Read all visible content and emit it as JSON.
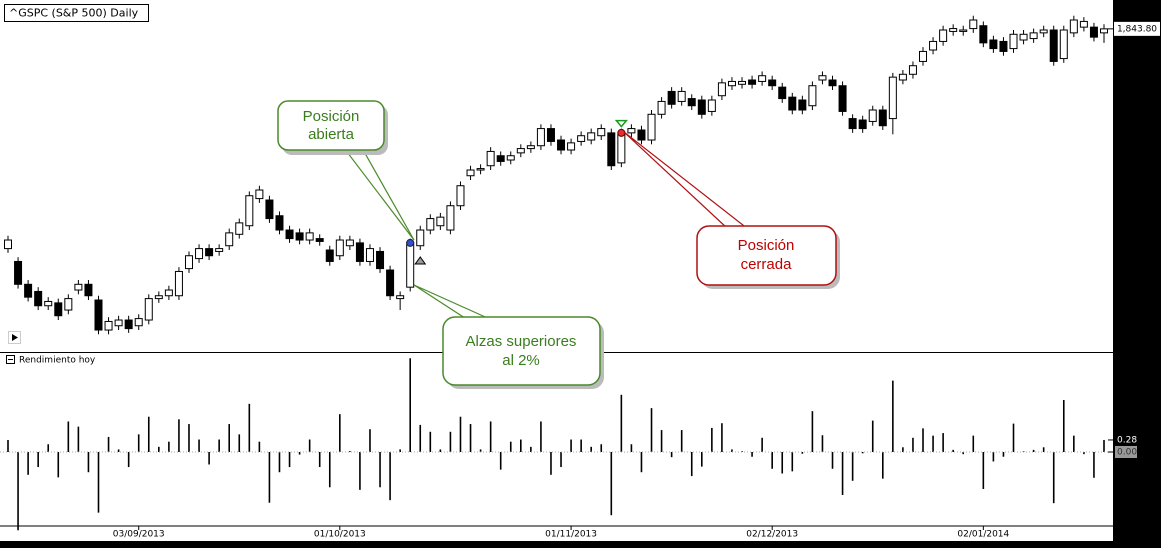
{
  "chart_data": [
    {
      "type": "candlestick",
      "title": "^GSPC (S&P 500) Daily",
      "open": [
        1690,
        1681,
        1665,
        1660,
        1650,
        1652,
        1647,
        1661,
        1665,
        1654,
        1633,
        1636,
        1640,
        1636,
        1640,
        1655,
        1657,
        1657,
        1676,
        1683,
        1690,
        1688,
        1692,
        1700,
        1706,
        1725,
        1724,
        1713,
        1703,
        1701,
        1696,
        1697,
        1689,
        1685,
        1692,
        1694,
        1681,
        1688,
        1675,
        1655,
        1663,
        1692,
        1703,
        1706,
        1703,
        1720,
        1741,
        1745,
        1748,
        1755,
        1752,
        1757,
        1760,
        1762,
        1774,
        1766,
        1759,
        1765,
        1766,
        1769,
        1771,
        1750,
        1771,
        1773,
        1766,
        1784,
        1800,
        1793,
        1795,
        1794,
        1786,
        1797,
        1804,
        1805,
        1808,
        1807,
        1808,
        1803,
        1796,
        1794,
        1790,
        1808,
        1808,
        1804,
        1781,
        1780,
        1779,
        1787,
        1781,
        1808,
        1812,
        1821,
        1829,
        1835,
        1842,
        1842,
        1844,
        1846,
        1836,
        1835,
        1830,
        1836,
        1837,
        1841,
        1843,
        1823,
        1841,
        1845,
        1845,
        1841
      ],
      "high": [
        1699,
        1684,
        1668,
        1663,
        1656,
        1655,
        1658,
        1668,
        1668,
        1657,
        1642,
        1643,
        1643,
        1644,
        1658,
        1660,
        1664,
        1677,
        1688,
        1693,
        1693,
        1693,
        1704,
        1711,
        1730,
        1734,
        1727,
        1716,
        1706,
        1704,
        1704,
        1700,
        1692,
        1699,
        1699,
        1697,
        1693,
        1691,
        1678,
        1660,
        1697,
        1706,
        1714,
        1715,
        1723,
        1737,
        1748,
        1749,
        1761,
        1758,
        1758,
        1763,
        1765,
        1777,
        1777,
        1769,
        1767,
        1772,
        1774,
        1777,
        1774,
        1774,
        1777,
        1776,
        1787,
        1796,
        1803,
        1803,
        1798,
        1797,
        1797,
        1809,
        1810,
        1810,
        1811,
        1814,
        1811,
        1806,
        1799,
        1797,
        1807,
        1814,
        1811,
        1807,
        1784,
        1783,
        1790,
        1790,
        1813,
        1815,
        1821,
        1831,
        1838,
        1846,
        1847,
        1846,
        1853,
        1849,
        1839,
        1838,
        1843,
        1843,
        1844,
        1846,
        1846,
        1846,
        1853,
        1852,
        1848,
        1847
      ],
      "low": [
        1687,
        1662,
        1653,
        1647,
        1647,
        1640,
        1644,
        1658,
        1654,
        1630,
        1630,
        1633,
        1631,
        1633,
        1637,
        1652,
        1654,
        1654,
        1673,
        1680,
        1682,
        1685,
        1689,
        1697,
        1703,
        1722,
        1708,
        1700,
        1694,
        1693,
        1693,
        1692,
        1678,
        1682,
        1689,
        1678,
        1678,
        1673,
        1654,
        1647,
        1660,
        1689,
        1700,
        1703,
        1700,
        1717,
        1738,
        1742,
        1745,
        1748,
        1749,
        1754,
        1757,
        1759,
        1762,
        1756,
        1756,
        1762,
        1763,
        1766,
        1745,
        1747,
        1768,
        1763,
        1763,
        1781,
        1788,
        1790,
        1787,
        1781,
        1783,
        1794,
        1801,
        1802,
        1802,
        1804,
        1801,
        1792,
        1784,
        1784,
        1787,
        1805,
        1801,
        1783,
        1771,
        1771,
        1776,
        1773,
        1770,
        1805,
        1809,
        1818,
        1826,
        1832,
        1839,
        1839,
        1841,
        1831,
        1827,
        1825,
        1827,
        1833,
        1834,
        1838,
        1818,
        1820,
        1838,
        1842,
        1835,
        1834
      ],
      "close": [
        1696,
        1665,
        1656,
        1650,
        1653,
        1643,
        1655,
        1665,
        1657,
        1633,
        1639,
        1640,
        1634,
        1641,
        1655,
        1657,
        1661,
        1674,
        1685,
        1690,
        1685,
        1690,
        1701,
        1708,
        1727,
        1731,
        1711,
        1703,
        1697,
        1696,
        1701,
        1695,
        1681,
        1696,
        1696,
        1681,
        1690,
        1676,
        1657,
        1657,
        1694,
        1703,
        1711,
        1712,
        1720,
        1734,
        1745,
        1746,
        1758,
        1751,
        1755,
        1760,
        1762,
        1774,
        1765,
        1759,
        1764,
        1769,
        1771,
        1774,
        1748,
        1771,
        1774,
        1766,
        1784,
        1793,
        1791,
        1800,
        1790,
        1784,
        1794,
        1806,
        1807,
        1807,
        1805,
        1811,
        1804,
        1795,
        1787,
        1787,
        1804,
        1811,
        1804,
        1786,
        1774,
        1774,
        1787,
        1776,
        1810,
        1812,
        1818,
        1828,
        1835,
        1843,
        1844,
        1843,
        1850,
        1834,
        1830,
        1828,
        1840,
        1840,
        1841,
        1843,
        1821,
        1843,
        1850,
        1849,
        1838,
        1843.8
      ],
      "ylim": [
        1620,
        1864
      ],
      "yticks": [
        {
          "value": 1843.8,
          "label": "1,843.80"
        }
      ],
      "annotations": [
        {
          "lines": [
            "Posición",
            "abierta"
          ]
        },
        {
          "lines": [
            "Alzas superiores",
            "al 2%"
          ]
        },
        {
          "lines": [
            "Posición",
            "cerrada"
          ]
        }
      ]
    },
    {
      "type": "bar",
      "title": "Rendimiento hoy",
      "color": "#000000",
      "categories": [
        null,
        null,
        null,
        null,
        null,
        null,
        null,
        null,
        null,
        null,
        null,
        null,
        null,
        "03/09/2013",
        null,
        null,
        null,
        null,
        null,
        null,
        null,
        null,
        null,
        null,
        null,
        null,
        null,
        null,
        null,
        null,
        null,
        null,
        null,
        "01/10/2013",
        null,
        null,
        null,
        null,
        null,
        null,
        null,
        null,
        null,
        null,
        null,
        null,
        null,
        null,
        null,
        null,
        null,
        null,
        null,
        null,
        null,
        null,
        "01/11/2013",
        null,
        null,
        null,
        null,
        null,
        null,
        null,
        null,
        null,
        null,
        null,
        null,
        null,
        null,
        null,
        null,
        null,
        null,
        null,
        "02/12/2013",
        null,
        null,
        null,
        null,
        null,
        null,
        null,
        null,
        null,
        null,
        null,
        null,
        null,
        null,
        null,
        null,
        null,
        null,
        null,
        null,
        "02/01/2014",
        null,
        null,
        null,
        null,
        null,
        null,
        null,
        null,
        null,
        null,
        null,
        null
      ],
      "values": [
        0.28,
        -1.82,
        -0.53,
        -0.35,
        0.18,
        -0.59,
        0.71,
        0.59,
        -0.47,
        -1.41,
        0.35,
        0.06,
        -0.35,
        0.41,
        0.82,
        0.12,
        0.24,
        0.76,
        0.65,
        0.29,
        -0.29,
        0.29,
        0.65,
        0.41,
        1.12,
        0.24,
        -1.18,
        -0.47,
        -0.35,
        -0.06,
        0.29,
        -0.35,
        -0.82,
        0.88,
        0.02,
        -0.88,
        0.53,
        -0.82,
        -1.12,
        0.06,
        2.18,
        0.63,
        0.47,
        0.06,
        0.47,
        0.82,
        0.65,
        0.06,
        0.71,
        -0.41,
        0.24,
        0.29,
        0.12,
        0.71,
        -0.53,
        -0.35,
        0.29,
        0.29,
        0.12,
        0.18,
        -1.47,
        1.33,
        0.18,
        -0.47,
        1.02,
        0.51,
        -0.12,
        0.51,
        -0.56,
        -0.34,
        0.56,
        0.67,
        0.06,
        0.02,
        -0.11,
        0.33,
        -0.39,
        -0.5,
        -0.45,
        -0.04,
        0.95,
        0.39,
        -0.39,
        -1.0,
        -0.67,
        -0.03,
        0.73,
        -0.62,
        1.66,
        0.11,
        0.33,
        0.55,
        0.38,
        0.44,
        0.05,
        -0.05,
        0.38,
        -0.86,
        -0.22,
        -0.11,
        0.66,
        0.02,
        0.05,
        0.11,
        -1.19,
        1.21,
        0.38,
        -0.05,
        -0.6,
        0.28
      ],
      "ylim": [
        -1.7,
        2.2
      ],
      "yticks": [
        0.28,
        {
          "value": 0,
          "label": "0.00"
        }
      ]
    }
  ]
}
